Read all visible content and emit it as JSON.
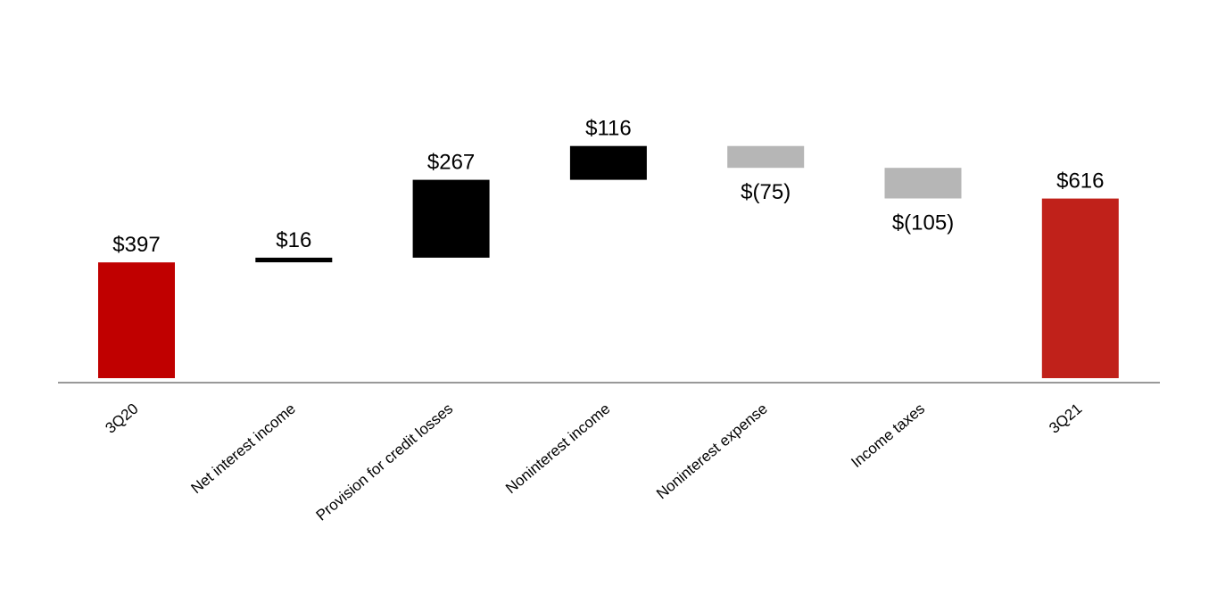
{
  "chart_data": {
    "type": "waterfall",
    "categories": [
      "3Q20",
      "Net interest income",
      "Provision for credit losses",
      "Noninterest income",
      "Noninterest expense",
      "Income taxes",
      "3Q21"
    ],
    "values": [
      397,
      16,
      267,
      116,
      -75,
      -105,
      616
    ],
    "labels": [
      "$397",
      "$16",
      "$267",
      "$116",
      "$(75)",
      "$(105)",
      "$616"
    ],
    "kinds": [
      "total",
      "delta",
      "delta",
      "delta",
      "delta",
      "delta",
      "total"
    ],
    "ylim": [
      0,
      800
    ],
    "grid": false,
    "colors": {
      "start_total": "#c00000",
      "end_total": "#c0211a",
      "increase": "#000000",
      "decrease": "#b6b6b6",
      "axis": "#999999"
    }
  }
}
